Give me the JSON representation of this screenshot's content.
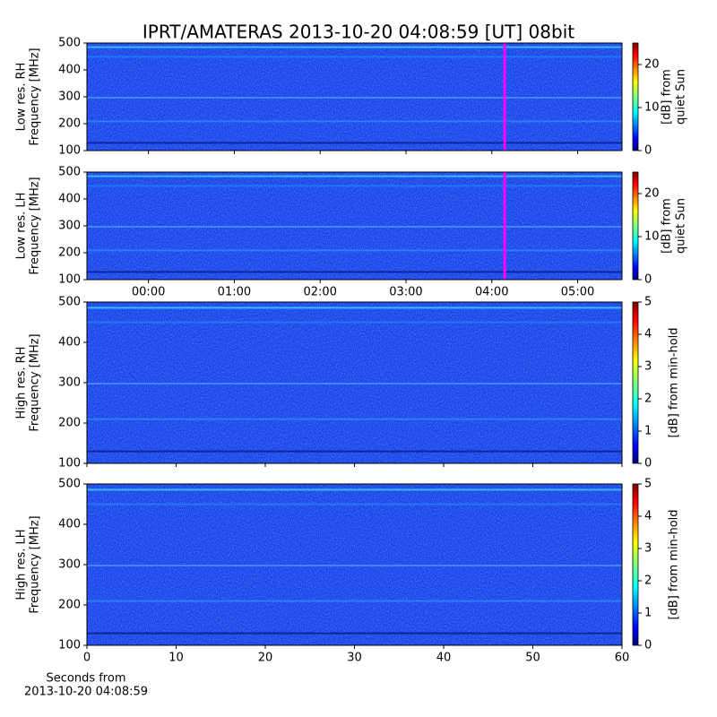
{
  "title": "IPRT/AMATERAS 2013-10-20 04:08:59 [UT]   08bit",
  "xlabel": [
    "Seconds from",
    "2013-10-20 04:08:59"
  ],
  "chart_data": [
    {
      "type": "spectrogram",
      "ylabel": [
        "Low res. RH",
        "Frequency [MHz]"
      ],
      "xlim": [
        "23:17",
        "05:31"
      ],
      "xticks": [
        "00:00",
        "01:00",
        "02:00",
        "03:00",
        "04:00",
        "05:00"
      ],
      "show_xticklabels": false,
      "ylim": [
        100,
        500
      ],
      "yticks": [
        100,
        200,
        300,
        400,
        500
      ],
      "marker_x": "04:09",
      "marker_color": "#ff00ff",
      "colorbar_label": [
        "[dB] from",
        "quiet Sun"
      ],
      "clim": [
        0,
        25
      ],
      "cticks": [
        0,
        10,
        20
      ]
    },
    {
      "type": "spectrogram",
      "ylabel": [
        "Low res. LH",
        "Frequency [MHz]"
      ],
      "xlim": [
        "23:17",
        "05:31"
      ],
      "xticks": [
        "00:00",
        "01:00",
        "02:00",
        "03:00",
        "04:00",
        "05:00"
      ],
      "show_xticklabels": true,
      "ylim": [
        100,
        500
      ],
      "yticks": [
        100,
        200,
        300,
        400,
        500
      ],
      "marker_x": "04:09",
      "marker_color": "#ff00ff",
      "colorbar_label": [
        "[dB] from",
        "quiet Sun"
      ],
      "clim": [
        0,
        25
      ],
      "cticks": [
        0,
        10,
        20
      ]
    },
    {
      "type": "spectrogram",
      "ylabel": [
        "High res. RH",
        "Frequency [MHz]"
      ],
      "xlim": [
        0,
        60
      ],
      "xticks": [
        0,
        10,
        20,
        30,
        40,
        50,
        60
      ],
      "show_xticklabels": false,
      "ylim": [
        100,
        500
      ],
      "yticks": [
        100,
        200,
        300,
        400,
        500
      ],
      "colorbar_label": [
        "[dB] from min-hold"
      ],
      "clim": [
        0,
        5
      ],
      "cticks": [
        0,
        1,
        2,
        3,
        4,
        5
      ]
    },
    {
      "type": "spectrogram",
      "ylabel": [
        "High res. LH",
        "Frequency [MHz]"
      ],
      "xlim": [
        0,
        60
      ],
      "xticks": [
        0,
        10,
        20,
        30,
        40,
        50,
        60
      ],
      "show_xticklabels": true,
      "ylim": [
        100,
        500
      ],
      "yticks": [
        100,
        200,
        300,
        400,
        500
      ],
      "colorbar_label": [
        "[dB] from min-hold"
      ],
      "clim": [
        0,
        5
      ],
      "cticks": [
        0,
        1,
        2,
        3,
        4,
        5
      ]
    }
  ]
}
